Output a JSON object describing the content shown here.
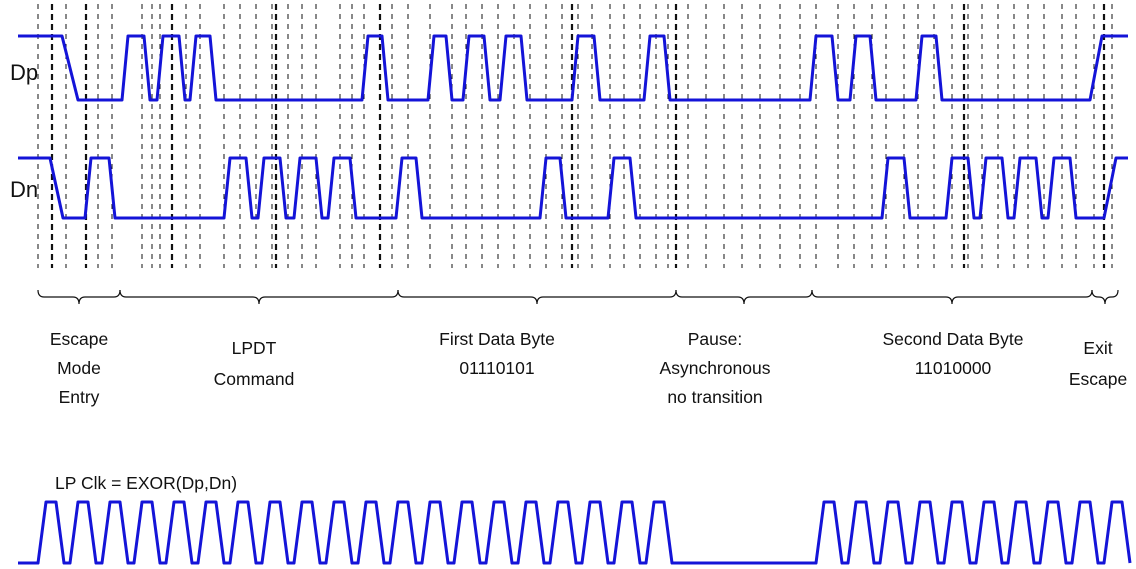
{
  "signals": {
    "dp": {
      "label": "Dp"
    },
    "dn": {
      "label": "Dn"
    },
    "clk": {
      "label": "LP Clk = EXOR(Dp,Dn)"
    }
  },
  "phases": [
    {
      "lines": [
        "Escape",
        "Mode",
        "Entry"
      ]
    },
    {
      "lines": [
        "LPDT",
        "Command"
      ]
    },
    {
      "lines": [
        "First Data Byte",
        "01110101"
      ]
    },
    {
      "lines": [
        "Pause:",
        "Asynchronous",
        "no transition"
      ]
    },
    {
      "lines": [
        "Second Data Byte",
        "11010000"
      ]
    },
    {
      "lines": [
        "Exit",
        "Escape"
      ]
    }
  ],
  "colors": {
    "waveform": "#1414d8",
    "guides": "#111111",
    "text": "#111111"
  }
}
